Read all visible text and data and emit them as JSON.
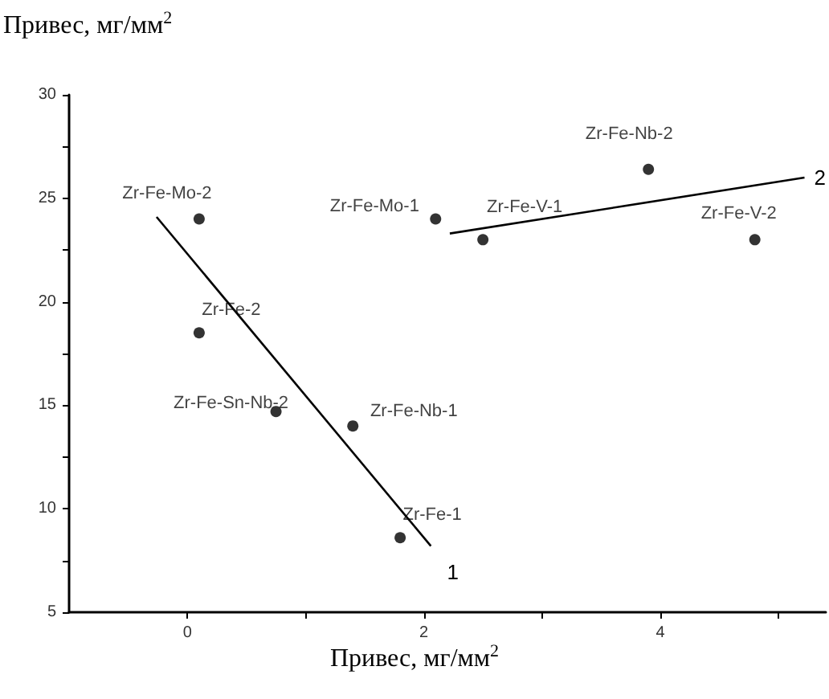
{
  "chart_data": {
    "type": "scatter",
    "xlabel": "Привес, мг/мм$^{2}$",
    "ylabel": "Привес, мг/мм$^{2}$",
    "xlim": [
      -1,
      5.4
    ],
    "ylim": [
      5,
      30
    ],
    "xticks": [
      0,
      {
        "value": 1,
        "label": null
      },
      2,
      {
        "value": 3,
        "label": null
      },
      4,
      {
        "value": 5,
        "label": null
      }
    ],
    "yticks": [
      5,
      {
        "value": 7.5,
        "label": null
      },
      10,
      {
        "value": 12.5,
        "label": null
      },
      15,
      {
        "value": 17.5,
        "label": null
      },
      20,
      {
        "value": 22.5,
        "label": null
      },
      25,
      {
        "value": 27.5,
        "label": null
      },
      30
    ],
    "grid": false,
    "legend": false,
    "marker": "circle",
    "series": [
      {
        "type": "scatter",
        "color": "#000000",
        "x": [
          0.1,
          0.1,
          0.75,
          1.4,
          1.8,
          2.1,
          2.5,
          3.9,
          4.8
        ],
        "values": [
          24,
          18.5,
          14.7,
          14,
          8.6,
          24,
          23,
          26.4,
          23
        ],
        "value_labels": [
          "Zr-Fe-Mo-2",
          "Zr-Fe-2",
          "Zr-Fe-Sn-Nb-2",
          "Zr-Fe-Nb-1",
          "Zr-Fe-1",
          "Zr-Fe-Mo-1",
          "Zr-Fe-V-1",
          "Zr-Fe-Nb-2",
          "Zr-Fe-V-2"
        ]
      },
      {
        "type": "line",
        "name": "1",
        "color": "#000000",
        "marker": "none",
        "x": [
          -0.26,
          2.06
        ],
        "values": [
          24.1,
          8.2
        ]
      },
      {
        "type": "line",
        "name": "2",
        "color": "#000000",
        "marker": "none",
        "x": [
          2.22,
          5.22
        ],
        "values": [
          23.3,
          26
        ]
      }
    ]
  }
}
